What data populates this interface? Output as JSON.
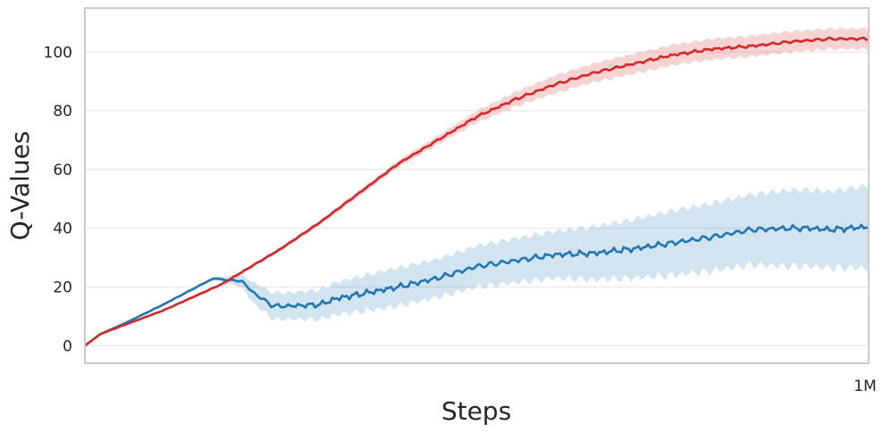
{
  "chart_data": {
    "type": "line",
    "xlabel": "Steps",
    "ylabel": "Q-Values",
    "xlim": [
      0,
      1000000
    ],
    "ylim": [
      -6,
      115
    ],
    "x_ticks": [
      {
        "value": 1000000,
        "label": "1M"
      }
    ],
    "y_ticks": [
      0,
      20,
      40,
      60,
      80,
      100
    ],
    "grid": "horizontal",
    "colors": {
      "red": "#d62728",
      "blue": "#1f77b4",
      "frame": "#cccccc",
      "grid": "#ebebeb"
    },
    "series": [
      {
        "color": "#d62728",
        "x": [
          0,
          20000,
          50000,
          100000,
          150000,
          175000,
          200000,
          250000,
          300000,
          350000,
          400000,
          450000,
          500000,
          550000,
          600000,
          650000,
          700000,
          750000,
          800000,
          850000,
          900000,
          950000,
          1000000
        ],
        "y": [
          0,
          4,
          7,
          12,
          18,
          21,
          25,
          33,
          42,
          52,
          62,
          70,
          78,
          84,
          89,
          93,
          96,
          99,
          101,
          102,
          103.5,
          104.5,
          104.5
        ],
        "band": [
          0.1,
          0.2,
          0.3,
          0.4,
          0.5,
          0.5,
          0.6,
          0.7,
          0.8,
          1.0,
          1.2,
          1.5,
          2.0,
          2.5,
          3.0,
          3.2,
          3.4,
          3.5,
          3.5,
          3.5,
          3.5,
          3.5,
          3.5
        ]
      },
      {
        "color": "#1f77b4",
        "x": [
          0,
          20000,
          50000,
          100000,
          150000,
          165000,
          175000,
          200000,
          215000,
          240000,
          260000,
          300000,
          320000,
          350000,
          400000,
          450000,
          500000,
          550000,
          600000,
          650000,
          700000,
          750000,
          800000,
          850000,
          900000,
          925000,
          950000,
          1000000
        ],
        "y": [
          0,
          4,
          7.5,
          14,
          21,
          23,
          22.5,
          22,
          18,
          13.5,
          13.5,
          14,
          16,
          17.5,
          20,
          23,
          27,
          29,
          31,
          31.5,
          33,
          35,
          37,
          39.5,
          40,
          40,
          39.5,
          40.5
        ],
        "band": [
          0.1,
          0.2,
          0.3,
          0.4,
          0.5,
          0.6,
          1.0,
          2.0,
          3.5,
          4.5,
          4.5,
          5.0,
          5.5,
          6.0,
          6.5,
          6.5,
          7.0,
          7.5,
          8.0,
          9.0,
          10.0,
          11.0,
          11.5,
          12.0,
          13.0,
          13.0,
          13.0,
          14.0
        ]
      }
    ]
  }
}
